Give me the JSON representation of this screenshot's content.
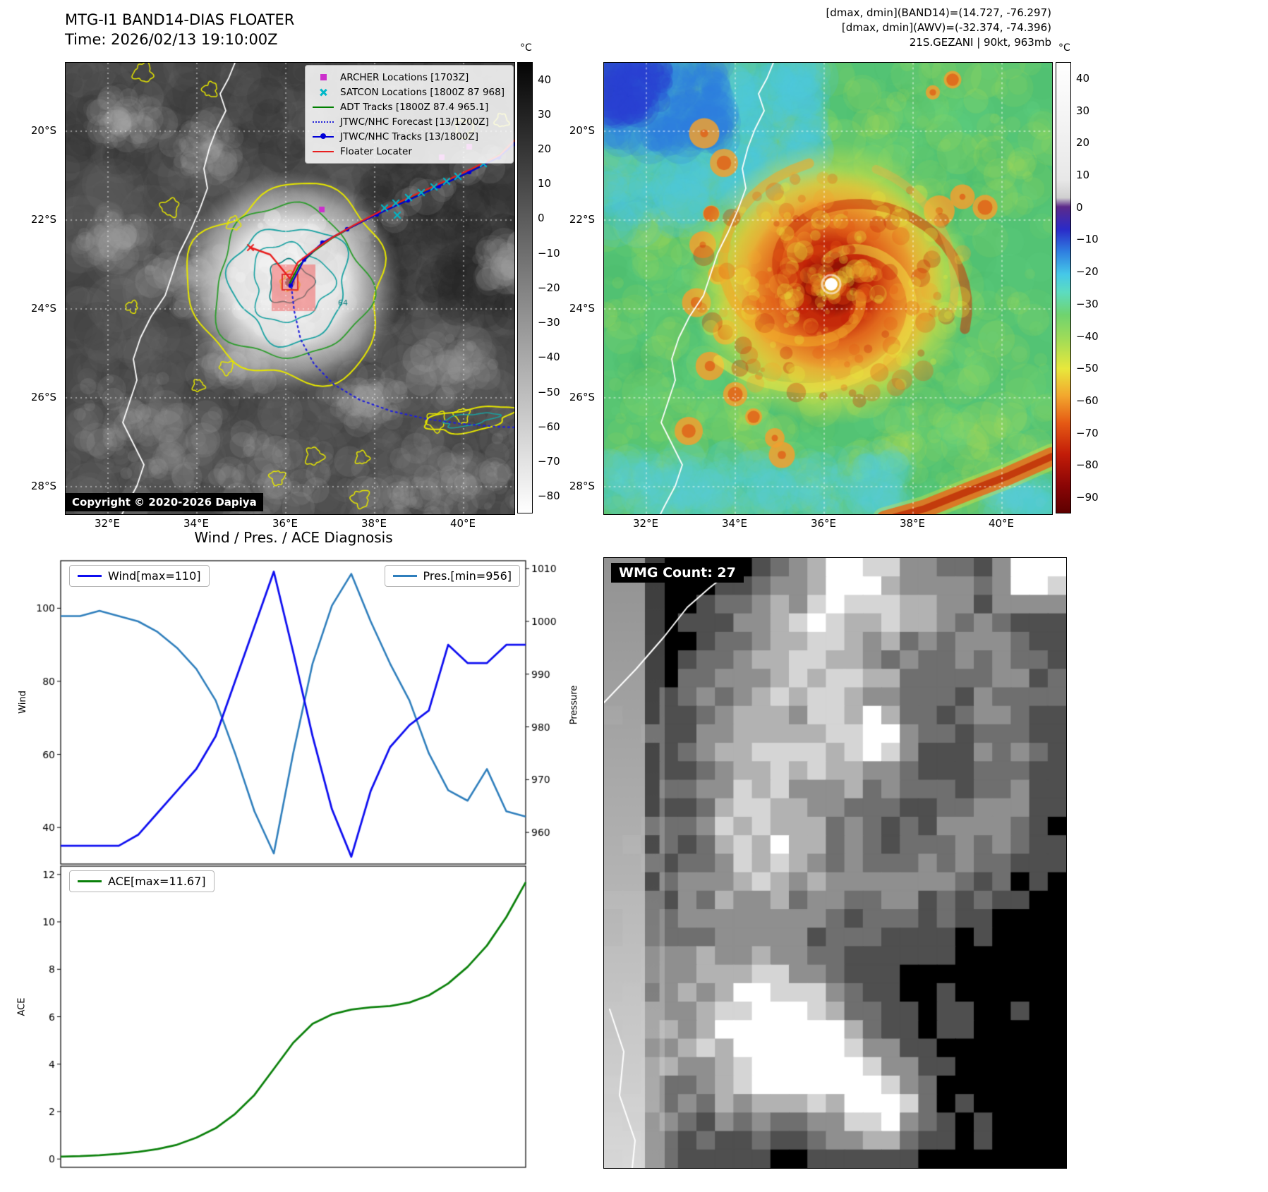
{
  "colors": {
    "archer_magenta": "#cc2fcc",
    "satcon_cyan": "#00b8c8",
    "adt_green": "#008000",
    "jtwc_blue": "#0000d8",
    "forecast_blue": "#2020d8",
    "floater_red": "#e81e1e",
    "contour_yellow": "#e6e600",
    "contour_teal": "#18a1a1",
    "contour_green": "#2c9c2c",
    "wind_line": "#0d0df0",
    "pres_line": "#2e7ebc",
    "ace_line": "#0a800a"
  },
  "panel_ir": {
    "title": "MTG-I1 BAND14-DIAS FLOATER",
    "subtitle": "Time: 2026/02/13 19:10:00Z",
    "legend": [
      {
        "label": "ARCHER Locations [1703Z]",
        "marker": "archer-square"
      },
      {
        "label": "SATCON Locations [1800Z 87 968]",
        "marker": "satcon-x"
      },
      {
        "label": "ADT Tracks [1800Z 87.4 965.1]",
        "marker": "adt-line"
      },
      {
        "label": "JTWC/NHC Forecast [13/1200Z]",
        "marker": "forecast-dotted"
      },
      {
        "label": "JTWC/NHC Tracks [13/1800Z]",
        "marker": "track-line-dot"
      },
      {
        "label": "Floater Locater",
        "marker": "floater-line"
      }
    ],
    "contour_label": "64",
    "copyright": "Copyright © 2020-2026 Dapiya",
    "colorbar_unit": "°C",
    "colorbar_ticks": [
      "40",
      "30",
      "20",
      "10",
      "0",
      "−10",
      "−20",
      "−30",
      "−40",
      "−50",
      "−60",
      "−70",
      "−80"
    ],
    "xticks": [
      "32°E",
      "34°E",
      "36°E",
      "38°E",
      "40°E"
    ],
    "yticks": [
      "20°S",
      "22°S",
      "24°S",
      "26°S",
      "28°S"
    ]
  },
  "panel_color": {
    "header_line1": "[dmax, dmin](BAND14)=(14.727, -76.297)",
    "header_line2": "[dmax, dmin](AWV)=(-32.374, -74.396)",
    "header_line3": "21S.GEZANI | 90kt, 963mb",
    "colorbar_unit": "°C",
    "colorbar_ticks": [
      "40",
      "30",
      "20",
      "10",
      "0",
      "−10",
      "−20",
      "−30",
      "−40",
      "−50",
      "−60",
      "−70",
      "−80",
      "−90"
    ],
    "xticks": [
      "32°E",
      "34°E",
      "36°E",
      "38°E",
      "40°E"
    ],
    "yticks": [
      "20°S",
      "22°S",
      "24°S",
      "26°S",
      "28°S"
    ]
  },
  "diagnosis": {
    "title": "Wind / Pres. / ACE Diagnosis",
    "wind_legend": "Wind[max=110]",
    "pres_legend": "Pres.[min=956]",
    "ace_legend": "ACE[max=11.67]",
    "wind_axis": "Wind",
    "pres_axis": "Pressure",
    "ace_axis": "ACE"
  },
  "wmg": {
    "label": "WMG Count: 27"
  },
  "chart_data": [
    {
      "type": "line",
      "title": "Wind / Pres. / ACE Diagnosis",
      "x": [
        0,
        1,
        2,
        3,
        4,
        5,
        6,
        7,
        8,
        9,
        10,
        11,
        12,
        13,
        14,
        15,
        16,
        17,
        18,
        19,
        20,
        21,
        22,
        23,
        24
      ],
      "series": [
        {
          "name": "Wind[max=110]",
          "axis": "left",
          "color": "#0d0df0",
          "values": [
            35,
            35,
            35,
            35,
            38,
            44,
            50,
            56,
            65,
            80,
            95,
            110,
            88,
            65,
            45,
            32,
            50,
            62,
            68,
            72,
            90,
            85,
            85,
            90,
            90
          ]
        },
        {
          "name": "Pres.[min=956]",
          "axis": "right",
          "color": "#2e7ebc",
          "values": [
            1001,
            1001,
            1002,
            1001,
            1000,
            998,
            995,
            991,
            985,
            975,
            964,
            956,
            975,
            992,
            1003,
            1009,
            1000,
            992,
            985,
            975,
            968,
            966,
            972,
            964,
            963
          ]
        }
      ],
      "left_axis": {
        "label": "Wind",
        "ticks": [
          40,
          60,
          80,
          100
        ],
        "range": [
          30,
          113
        ]
      },
      "right_axis": {
        "label": "Pressure",
        "ticks": [
          960,
          970,
          980,
          990,
          1000,
          1010
        ],
        "range": [
          954,
          1011.5
        ]
      },
      "grid": false,
      "legend_position": "upper-left / upper-right"
    },
    {
      "type": "line",
      "x": [
        0,
        1,
        2,
        3,
        4,
        5,
        6,
        7,
        8,
        9,
        10,
        11,
        12,
        13,
        14,
        15,
        16,
        17,
        18,
        19,
        20,
        21,
        22,
        23,
        24
      ],
      "series": [
        {
          "name": "ACE[max=11.67]",
          "axis": "left",
          "color": "#0a800a",
          "values": [
            0.1,
            0.12,
            0.16,
            0.22,
            0.3,
            0.42,
            0.6,
            0.9,
            1.3,
            1.9,
            2.7,
            3.8,
            4.9,
            5.7,
            6.1,
            6.3,
            6.4,
            6.45,
            6.6,
            6.9,
            7.4,
            8.1,
            9.0,
            10.2,
            11.67
          ]
        }
      ],
      "left_axis": {
        "label": "ACE",
        "ticks": [
          0,
          2,
          4,
          6,
          8,
          10,
          12
        ],
        "range": [
          -0.35,
          12.35
        ]
      },
      "grid": false,
      "legend_position": "upper-left"
    }
  ]
}
